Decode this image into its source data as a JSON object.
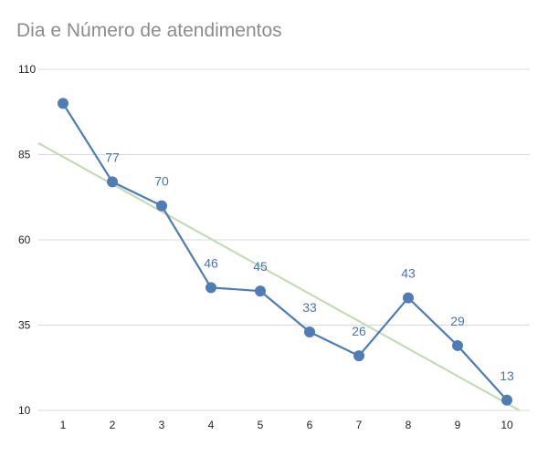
{
  "chart_data": {
    "type": "line",
    "title": "Dia e Número de atendimentos",
    "x": [
      1,
      2,
      3,
      4,
      5,
      6,
      7,
      8,
      9,
      10
    ],
    "series": [
      {
        "values": [
          100,
          77,
          70,
          46,
          45,
          33,
          26,
          43,
          29,
          13
        ],
        "data_labels": [
          "",
          "77",
          "70",
          "46",
          "45",
          "33",
          "26",
          "43",
          "29",
          "13"
        ],
        "color": "#4f7cb5"
      }
    ],
    "trendline": {
      "type": "linear",
      "color": "#c5dbb5"
    },
    "ylim": [
      10,
      110
    ],
    "yticks": [
      "10",
      "35",
      "60",
      "85",
      "110"
    ],
    "xticks": [
      "1",
      "2",
      "3",
      "4",
      "5",
      "6",
      "7",
      "8",
      "9",
      "10"
    ],
    "grid": true,
    "legend": "none"
  }
}
